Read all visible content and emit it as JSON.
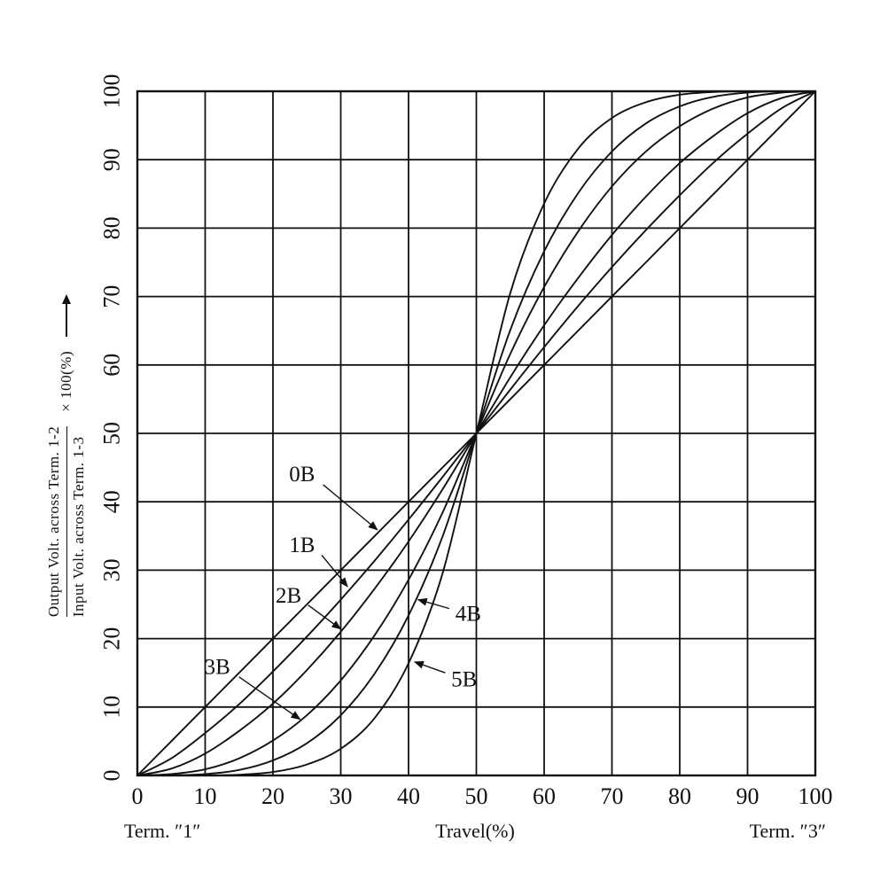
{
  "chart_data": {
    "type": "line",
    "xlim": [
      0,
      100
    ],
    "ylim": [
      0,
      100
    ],
    "grid": true,
    "xticks": [
      0,
      10,
      20,
      30,
      40,
      50,
      60,
      70,
      80,
      90,
      100
    ],
    "yticks": [
      0,
      10,
      20,
      30,
      40,
      50,
      60,
      70,
      80,
      90,
      100
    ],
    "x": [
      0,
      5,
      10,
      15,
      20,
      25,
      30,
      35,
      40,
      45,
      50,
      55,
      60,
      65,
      70,
      75,
      80,
      85,
      90,
      95,
      100
    ],
    "series": [
      {
        "name": "0B",
        "values": [
          0,
          5,
          10,
          15,
          20,
          25,
          30,
          35,
          40,
          45,
          50,
          55,
          60,
          65,
          70,
          75,
          80,
          85,
          90,
          95,
          100
        ]
      },
      {
        "name": "1B",
        "values": [
          0,
          2.5,
          6.2,
          10.4,
          15.2,
          20.3,
          25.7,
          31.4,
          37.4,
          43.6,
          50,
          56.4,
          62.6,
          68.6,
          74.3,
          79.7,
          84.8,
          89.6,
          93.8,
          97.5,
          100
        ]
      },
      {
        "name": "2B",
        "values": [
          0,
          1.0,
          3.2,
          6.5,
          10.5,
          15.4,
          21.0,
          27.3,
          34.2,
          41.8,
          50,
          58.2,
          65.8,
          72.7,
          79.0,
          84.6,
          89.5,
          93.5,
          96.8,
          99.0,
          100
        ]
      },
      {
        "name": "3B",
        "values": [
          0,
          0.2,
          0.9,
          2.5,
          5.1,
          8.8,
          13.9,
          20.5,
          28.6,
          38.4,
          50,
          61.6,
          71.4,
          79.5,
          86.1,
          91.2,
          94.9,
          97.5,
          99.1,
          99.8,
          100
        ]
      },
      {
        "name": "4B",
        "values": [
          0,
          0.0,
          0.2,
          0.8,
          2.2,
          4.7,
          8.8,
          14.9,
          23.4,
          34.9,
          50,
          65.1,
          76.6,
          85.1,
          91.2,
          95.3,
          97.8,
          99.2,
          99.8,
          100,
          100
        ]
      },
      {
        "name": "5B",
        "values": [
          0,
          0.0,
          0.0,
          0.1,
          0.5,
          1.6,
          3.9,
          8.4,
          16.4,
          29.5,
          50,
          70.5,
          83.6,
          91.6,
          96.1,
          98.4,
          99.5,
          99.9,
          100,
          100,
          100
        ]
      }
    ],
    "annotations": [
      {
        "label": "0B",
        "label_xy": [
          24.3,
          44.0
        ],
        "arrow_from": [
          27.4,
          42.5
        ],
        "arrow_to": [
          35.4,
          35.9
        ]
      },
      {
        "label": "1B",
        "label_xy": [
          24.3,
          33.6
        ],
        "arrow_from": [
          27.2,
          32.2
        ],
        "arrow_to": [
          31.0,
          27.6
        ]
      },
      {
        "label": "2B",
        "label_xy": [
          22.3,
          26.2
        ],
        "arrow_from": [
          25.2,
          24.9
        ],
        "arrow_to": [
          30.0,
          21.4
        ]
      },
      {
        "label": "3B",
        "label_xy": [
          11.8,
          15.8
        ],
        "arrow_from": [
          15.0,
          14.4
        ],
        "arrow_to": [
          24.0,
          8.2
        ]
      },
      {
        "label": "4B",
        "label_xy": [
          48.8,
          23.6
        ],
        "arrow_from": [
          46.0,
          24.4
        ],
        "arrow_to": [
          41.4,
          25.7
        ]
      },
      {
        "label": "5B",
        "label_xy": [
          48.2,
          14.0
        ],
        "arrow_from": [
          45.4,
          15.0
        ],
        "arrow_to": [
          40.9,
          16.6
        ]
      }
    ],
    "ylabel": {
      "numerator": "Output Volt. across  Term. 1-2",
      "denominator": "Input Volt. across  Term. 1-3",
      "suffix": "× 100(%)"
    },
    "footer_labels": {
      "left": "Term. ″1″",
      "center": "Travel(%)",
      "right": "Term. ″3″"
    },
    "line_color": "#111111"
  }
}
